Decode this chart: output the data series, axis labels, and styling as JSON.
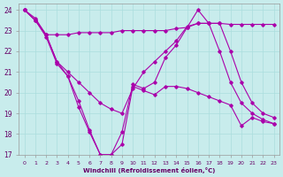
{
  "xlabel": "Windchill (Refroidissement éolien,°C)",
  "ylabel": "",
  "background_color": "#c8ecec",
  "grid_color": "#aadddd",
  "line_color": "#aa00aa",
  "xlim": [
    -0.5,
    23.5
  ],
  "ylim": [
    17,
    24.3
  ],
  "yticks": [
    17,
    18,
    19,
    20,
    21,
    22,
    23,
    24
  ],
  "xticks": [
    0,
    1,
    2,
    3,
    4,
    5,
    6,
    7,
    8,
    9,
    10,
    11,
    12,
    13,
    14,
    15,
    16,
    17,
    18,
    19,
    20,
    21,
    22,
    23
  ],
  "series": [
    {
      "x": [
        0,
        1,
        2,
        3,
        4,
        5,
        6,
        7,
        8,
        9,
        10,
        11,
        12,
        13,
        14,
        15,
        16,
        17,
        18,
        19,
        20,
        21,
        22,
        23
      ],
      "y": [
        24.0,
        23.5,
        22.8,
        22.8,
        22.8,
        22.9,
        22.9,
        22.9,
        22.9,
        23.0,
        23.0,
        23.0,
        23.0,
        23.0,
        23.1,
        23.15,
        23.35,
        23.35,
        23.35,
        23.3,
        23.3,
        23.3,
        23.3,
        23.3
      ]
    },
    {
      "x": [
        0,
        1,
        2,
        3,
        4,
        5,
        6,
        7,
        8,
        9,
        10,
        11,
        12,
        13,
        14,
        15,
        16,
        17,
        18,
        19,
        20,
        21,
        22,
        23
      ],
      "y": [
        24.0,
        23.5,
        22.8,
        21.5,
        21.0,
        20.5,
        20.0,
        19.5,
        19.2,
        19.0,
        20.2,
        21.0,
        21.5,
        22.0,
        22.5,
        23.2,
        23.35,
        23.35,
        23.35,
        22.0,
        20.5,
        19.5,
        19.0,
        18.8
      ]
    },
    {
      "x": [
        0,
        1,
        2,
        3,
        4,
        5,
        6,
        7,
        8,
        9,
        10,
        11,
        12,
        13,
        14,
        15,
        16,
        17,
        18,
        19,
        20,
        21,
        22,
        23
      ],
      "y": [
        24.0,
        23.6,
        22.8,
        21.5,
        20.8,
        19.3,
        18.1,
        17.0,
        17.0,
        18.1,
        20.4,
        20.2,
        20.5,
        21.7,
        22.3,
        23.15,
        24.0,
        23.35,
        22.0,
        20.5,
        19.5,
        19.0,
        18.7,
        18.5
      ]
    },
    {
      "x": [
        0,
        1,
        2,
        3,
        4,
        5,
        6,
        7,
        8,
        9,
        10,
        11,
        12,
        13,
        14,
        15,
        16,
        17,
        18,
        19,
        20,
        21,
        22,
        23
      ],
      "y": [
        24.0,
        23.5,
        22.7,
        21.4,
        20.8,
        19.6,
        18.2,
        17.0,
        17.0,
        17.5,
        20.3,
        20.1,
        19.9,
        20.3,
        20.3,
        20.2,
        20.0,
        19.8,
        19.6,
        19.4,
        18.4,
        18.8,
        18.6,
        18.5
      ]
    }
  ]
}
